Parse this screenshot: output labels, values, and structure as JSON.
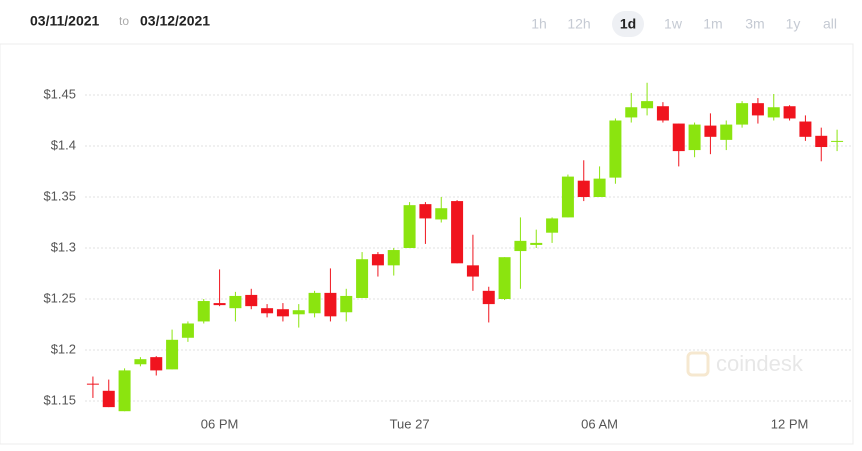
{
  "header": {
    "from": "03/11/2021",
    "separator": "to",
    "to": "03/12/2021"
  },
  "ranges": [
    "1h",
    "12h",
    "1d",
    "1w",
    "1m",
    "3m",
    "1y",
    "all"
  ],
  "selected_range": "1d",
  "watermark": "coindesk",
  "chart_data": {
    "type": "candlestick",
    "categories": [
      null,
      null,
      null,
      null,
      null,
      null,
      null,
      null,
      "06 PM",
      null,
      null,
      null,
      null,
      null,
      null,
      null,
      null,
      null,
      null,
      null,
      "Tue 27",
      null,
      null,
      null,
      null,
      null,
      null,
      null,
      null,
      null,
      null,
      null,
      "06 AM",
      null,
      null,
      null,
      null,
      null,
      null,
      null,
      null,
      null,
      null,
      null,
      "12 PM",
      null,
      null,
      null
    ],
    "open": [
      1.167,
      1.16,
      1.14,
      1.186,
      1.193,
      1.181,
      1.212,
      1.228,
      1.246,
      1.241,
      1.254,
      1.241,
      1.24,
      1.235,
      1.236,
      1.256,
      1.237,
      1.251,
      1.294,
      1.283,
      1.3,
      1.343,
      1.328,
      1.346,
      1.283,
      1.258,
      1.25,
      1.297,
      1.303,
      1.315,
      1.33,
      1.366,
      1.35,
      1.369,
      1.428,
      1.437,
      1.439,
      1.422,
      1.396,
      1.42,
      1.406,
      1.421,
      1.442,
      1.428,
      1.439,
      1.424,
      1.41,
      1.404
    ],
    "high": [
      1.174,
      1.171,
      1.182,
      1.193,
      1.194,
      1.22,
      1.228,
      1.25,
      1.279,
      1.257,
      1.26,
      1.245,
      1.246,
      1.245,
      1.258,
      1.28,
      1.26,
      1.296,
      1.296,
      1.3,
      1.345,
      1.345,
      1.35,
      1.347,
      1.313,
      1.262,
      1.291,
      1.33,
      1.318,
      1.33,
      1.372,
      1.386,
      1.38,
      1.427,
      1.452,
      1.462,
      1.443,
      1.422,
      1.423,
      1.432,
      1.425,
      1.444,
      1.447,
      1.451,
      1.44,
      1.43,
      1.418,
      1.416
    ],
    "low": [
      1.153,
      1.144,
      1.14,
      1.184,
      1.175,
      1.181,
      1.208,
      1.226,
      1.243,
      1.228,
      1.24,
      1.232,
      1.228,
      1.222,
      1.232,
      1.228,
      1.228,
      1.251,
      1.272,
      1.273,
      1.3,
      1.304,
      1.325,
      1.285,
      1.258,
      1.227,
      1.249,
      1.26,
      1.3,
      1.305,
      1.33,
      1.346,
      1.35,
      1.363,
      1.423,
      1.43,
      1.423,
      1.38,
      1.389,
      1.392,
      1.396,
      1.418,
      1.422,
      1.425,
      1.425,
      1.405,
      1.385,
      1.395
    ],
    "close": [
      1.167,
      1.144,
      1.18,
      1.191,
      1.18,
      1.21,
      1.226,
      1.248,
      1.244,
      1.253,
      1.243,
      1.236,
      1.233,
      1.239,
      1.256,
      1.233,
      1.253,
      1.289,
      1.283,
      1.298,
      1.342,
      1.329,
      1.339,
      1.285,
      1.272,
      1.245,
      1.291,
      1.307,
      1.305,
      1.329,
      1.37,
      1.35,
      1.368,
      1.425,
      1.438,
      1.444,
      1.425,
      1.395,
      1.421,
      1.409,
      1.421,
      1.442,
      1.43,
      1.438,
      1.427,
      1.409,
      1.399,
      1.405
    ],
    "up_color": "#8be40f",
    "down_color": "#f0141e",
    "ylim": [
      1.135,
      1.465
    ],
    "yticks": [
      {
        "value": 1.15,
        "label": "$1.15"
      },
      {
        "value": 1.2,
        "label": "$1.2"
      },
      {
        "value": 1.25,
        "label": "$1.25"
      },
      {
        "value": 1.3,
        "label": "$1.3"
      },
      {
        "value": 1.35,
        "label": "$1.35"
      },
      {
        "value": 1.4,
        "label": "$1.4"
      },
      {
        "value": 1.45,
        "label": "$1.45"
      }
    ],
    "grid": true
  }
}
